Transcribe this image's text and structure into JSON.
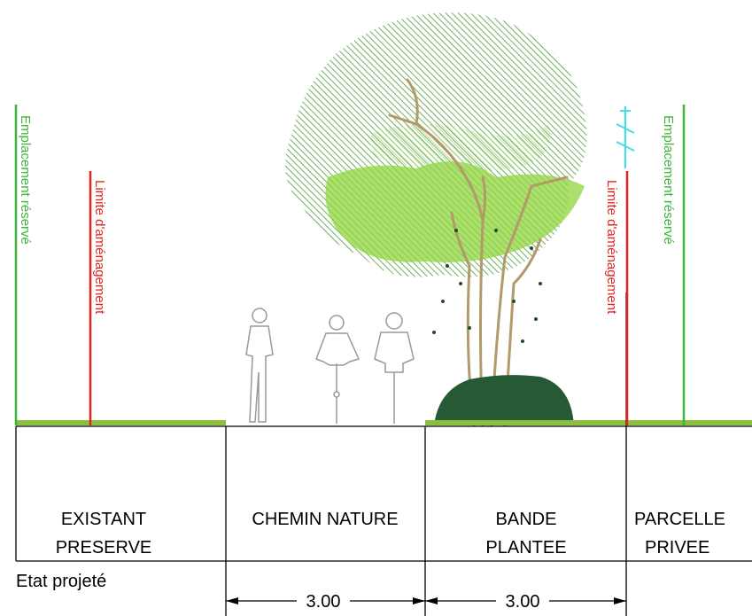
{
  "vertical_labels": [
    "Emplacement réservé",
    "Limite d'aménagement",
    "Limite d'aménagement",
    "Emplacement réservé"
  ],
  "zones": [
    {
      "lines": [
        "EXISTANT",
        "PRESERVE"
      ]
    },
    {
      "lines": [
        "CHEMIN NATURE"
      ]
    },
    {
      "lines": [
        "BANDE",
        "PLANTEE"
      ]
    },
    {
      "lines": [
        "PARCELLE",
        "PRIVEE"
      ]
    }
  ],
  "caption": "Etat projeté",
  "dimensions": [
    "3.00",
    "3.00"
  ]
}
